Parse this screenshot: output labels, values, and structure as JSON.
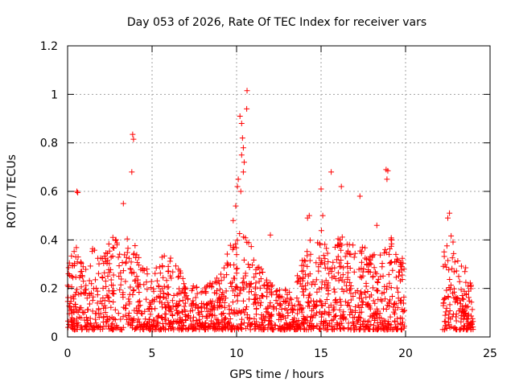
{
  "chart_data": {
    "type": "scatter",
    "title": "Day 053 of 2026, Rate Of TEC Index for receiver vars",
    "xlabel": "GPS time / hours",
    "ylabel": "ROTI / TECUs",
    "xlim": [
      0,
      25
    ],
    "ylim": [
      0,
      1.2
    ],
    "x_ticks": [
      0,
      5,
      10,
      15,
      20,
      25
    ],
    "x_tick_labels": [
      "0",
      "5",
      "10",
      "15",
      "20",
      "25"
    ],
    "y_ticks": [
      0,
      0.2,
      0.4,
      0.6,
      0.8,
      1.0,
      1.2
    ],
    "y_tick_labels": [
      "0",
      "0.2",
      "0.4",
      "0.6",
      "0.8",
      "1",
      "1.2"
    ],
    "grid": true,
    "marker": "plus",
    "color": "#ff0000",
    "series": [
      {
        "name": "ROTI",
        "note": "dense point cloud over ~0-19.9 h and ~22.2-24 h; generated from envelope + listed spikes",
        "coverage": [
          [
            0.0,
            19.95
          ],
          [
            22.2,
            24.0
          ]
        ],
        "envelope": [
          [
            0.0,
            0.3
          ],
          [
            0.6,
            0.4
          ],
          [
            1.0,
            0.28
          ],
          [
            1.5,
            0.38
          ],
          [
            2.0,
            0.33
          ],
          [
            2.7,
            0.42
          ],
          [
            3.3,
            0.4
          ],
          [
            3.8,
            0.45
          ],
          [
            4.3,
            0.3
          ],
          [
            5.0,
            0.27
          ],
          [
            5.8,
            0.36
          ],
          [
            6.5,
            0.3
          ],
          [
            7.0,
            0.22
          ],
          [
            8.0,
            0.2
          ],
          [
            9.0,
            0.26
          ],
          [
            9.6,
            0.4
          ],
          [
            10.2,
            0.45
          ],
          [
            10.8,
            0.4
          ],
          [
            11.5,
            0.3
          ],
          [
            12.5,
            0.22
          ],
          [
            13.3,
            0.18
          ],
          [
            14.2,
            0.4
          ],
          [
            15.0,
            0.45
          ],
          [
            15.6,
            0.3
          ],
          [
            16.0,
            0.43
          ],
          [
            16.7,
            0.38
          ],
          [
            17.4,
            0.4
          ],
          [
            18.0,
            0.33
          ],
          [
            18.8,
            0.43
          ],
          [
            19.5,
            0.4
          ],
          [
            19.95,
            0.3
          ],
          [
            22.2,
            0.38
          ],
          [
            22.6,
            0.45
          ],
          [
            23.0,
            0.35
          ],
          [
            23.5,
            0.3
          ],
          [
            24.0,
            0.2
          ]
        ],
        "spikes": [
          [
            0.55,
            0.6
          ],
          [
            0.6,
            0.595
          ],
          [
            3.85,
            0.835
          ],
          [
            3.9,
            0.815
          ],
          [
            3.8,
            0.68
          ],
          [
            3.3,
            0.55
          ],
          [
            9.95,
            0.54
          ],
          [
            10.05,
            0.62
          ],
          [
            10.2,
            0.91
          ],
          [
            10.3,
            0.88
          ],
          [
            10.35,
            0.82
          ],
          [
            10.4,
            0.78
          ],
          [
            10.45,
            0.72
          ],
          [
            10.3,
            0.75
          ],
          [
            10.4,
            0.68
          ],
          [
            10.6,
            0.94
          ],
          [
            10.62,
            1.015
          ],
          [
            10.1,
            0.65
          ],
          [
            10.25,
            0.6
          ],
          [
            15.0,
            0.61
          ],
          [
            15.6,
            0.68
          ],
          [
            16.2,
            0.62
          ],
          [
            17.3,
            0.58
          ],
          [
            18.85,
            0.69
          ],
          [
            18.95,
            0.685
          ],
          [
            18.9,
            0.65
          ],
          [
            14.3,
            0.5
          ],
          [
            14.2,
            0.49
          ],
          [
            15.1,
            0.5
          ],
          [
            22.6,
            0.51
          ],
          [
            22.5,
            0.49
          ],
          [
            18.3,
            0.46
          ],
          [
            12.0,
            0.42
          ],
          [
            9.8,
            0.48
          ]
        ]
      }
    ]
  }
}
